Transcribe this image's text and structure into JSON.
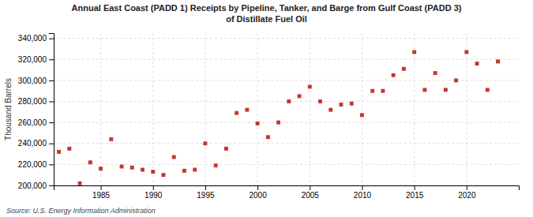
{
  "chart_data": {
    "type": "scatter",
    "title": "Annual East Coast (PADD 1) Receipts by Pipeline, Tanker, and Barge from Gulf Coast (PADD 3)\nof Distillate Fuel Oil",
    "ylabel": "Thousand Barrels",
    "source": "Source:  U.S. Energy Information Administration",
    "x": [
      1981,
      1982,
      1983,
      1984,
      1985,
      1986,
      1987,
      1988,
      1989,
      1990,
      1991,
      1992,
      1993,
      1994,
      1995,
      1996,
      1997,
      1998,
      1999,
      2000,
      2001,
      2002,
      2003,
      2004,
      2005,
      2006,
      2007,
      2008,
      2009,
      2010,
      2011,
      2012,
      2013,
      2014,
      2015,
      2016,
      2017,
      2018,
      2019,
      2020,
      2021,
      2022,
      2023
    ],
    "values": [
      232000,
      235000,
      202000,
      222000,
      216000,
      244000,
      218000,
      217000,
      215000,
      213000,
      210000,
      227000,
      214000,
      215000,
      240000,
      219000,
      235000,
      269000,
      272000,
      259000,
      246000,
      260000,
      280000,
      285000,
      294000,
      280000,
      272000,
      277000,
      278000,
      267000,
      290000,
      290000,
      305000,
      311000,
      327000,
      291000,
      307000,
      291000,
      300000,
      327000,
      316000,
      291000,
      318000
    ],
    "color": "#c0392b",
    "marker": "square",
    "grid": true,
    "xlim": [
      1980.5,
      2025
    ],
    "xticks": [
      1985,
      1990,
      1995,
      2000,
      2005,
      2010,
      2015,
      2020
    ],
    "ylim": [
      200000,
      345000
    ],
    "yticks": [
      {
        "value": 200000,
        "label": "200,000"
      },
      {
        "value": 220000,
        "label": "220,000"
      },
      {
        "value": 240000,
        "label": "240,000"
      },
      {
        "value": 260000,
        "label": "260,000"
      },
      {
        "value": 280000,
        "label": "280,000"
      },
      {
        "value": 300000,
        "label": "300,000"
      },
      {
        "value": 320000,
        "label": "320,000"
      },
      {
        "value": 340000,
        "label": "340,000"
      }
    ]
  }
}
